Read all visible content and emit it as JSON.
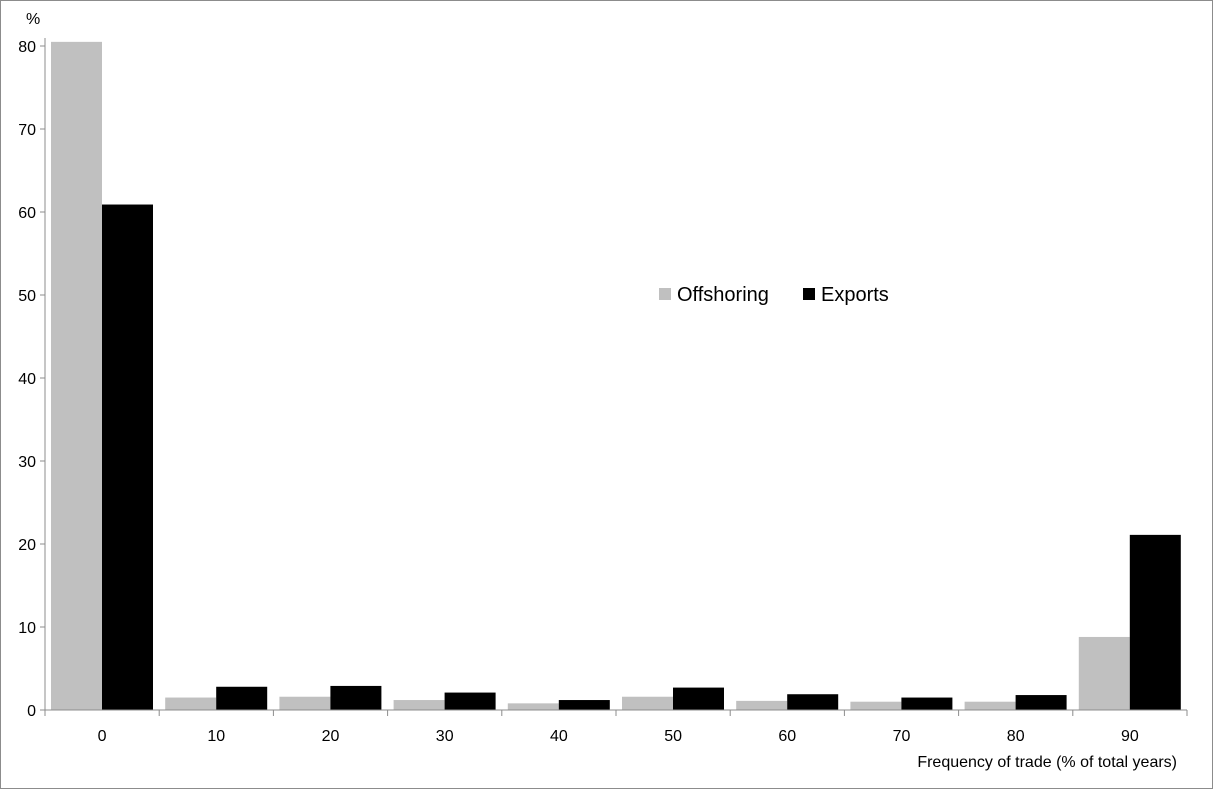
{
  "chart_data": {
    "type": "bar",
    "ylabel": "%",
    "xlabel": "Frequency of trade (% of total years)",
    "categories": [
      "0",
      "10",
      "20",
      "30",
      "40",
      "50",
      "60",
      "70",
      "80",
      "90"
    ],
    "ylim": [
      0,
      80
    ],
    "yticks": [
      "0",
      "10",
      "20",
      "30",
      "40",
      "50",
      "60",
      "70",
      "80"
    ],
    "grid": false,
    "legend_position": "center-right",
    "series": [
      {
        "name": "Offshoring",
        "color": "#c0c0c0",
        "values": [
          80.5,
          1.5,
          1.6,
          1.2,
          0.8,
          1.6,
          1.1,
          1.0,
          1.0,
          8.8
        ]
      },
      {
        "name": "Exports",
        "color": "#000000",
        "values": [
          60.9,
          2.8,
          2.9,
          2.1,
          1.2,
          2.7,
          1.9,
          1.5,
          1.8,
          21.1
        ]
      }
    ]
  }
}
